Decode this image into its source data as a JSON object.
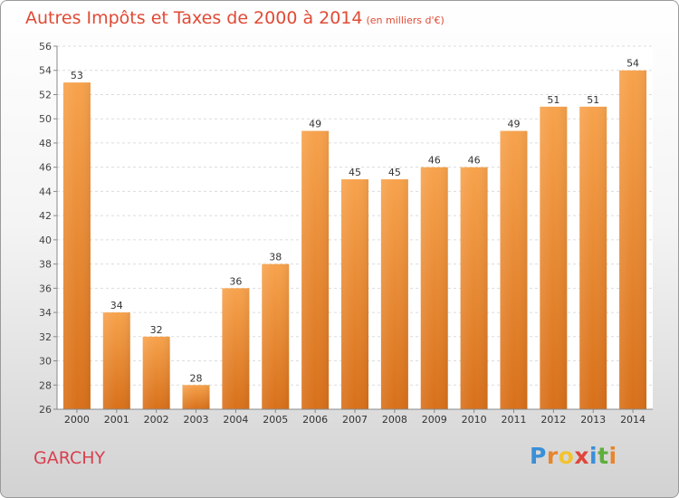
{
  "chart_data": {
    "type": "bar",
    "title": "Autres Impôts et Taxes de 2000 à 2014",
    "unit_note": "(en milliers d'€)",
    "categories": [
      "2000",
      "2001",
      "2002",
      "2003",
      "2004",
      "2005",
      "2006",
      "2007",
      "2008",
      "2009",
      "2010",
      "2011",
      "2012",
      "2013",
      "2014"
    ],
    "values": [
      53,
      34,
      32,
      28,
      36,
      38,
      49,
      45,
      45,
      46,
      46,
      49,
      51,
      51,
      54
    ],
    "ylim": [
      26,
      56
    ],
    "ytick_step": 2,
    "grid": "horizontal",
    "bar_color": "#f0953a"
  },
  "commune": "GARCHY",
  "logo": {
    "letters": [
      {
        "ch": "P",
        "color": "#3a8fd9"
      },
      {
        "ch": "r",
        "color": "#e8852c"
      },
      {
        "ch": "o",
        "color": "#f3c330"
      },
      {
        "ch": "x",
        "color": "#e0453a"
      },
      {
        "ch": "i",
        "color": "#3a8fd9"
      },
      {
        "ch": "t",
        "color": "#5fae3c"
      },
      {
        "ch": "i",
        "color": "#e8852c"
      }
    ]
  }
}
